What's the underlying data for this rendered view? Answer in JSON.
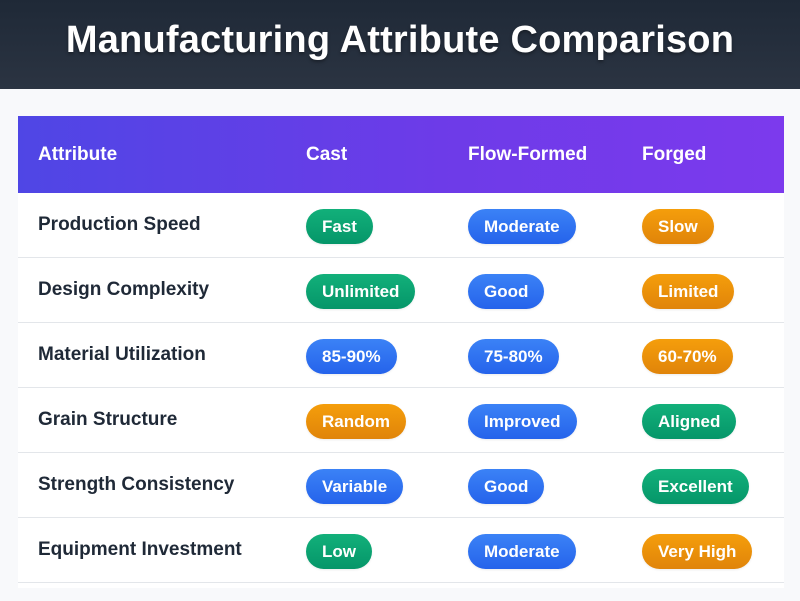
{
  "title": "Manufacturing Attribute Comparison",
  "columns": [
    "Attribute",
    "Cast",
    "Flow-Formed",
    "Forged"
  ],
  "colors": {
    "green": "#10a872",
    "blue": "#2f6fef",
    "orange": "#f08f0c",
    "header_start": "#4f46e5",
    "header_end": "#7c3aed"
  },
  "rows": [
    {
      "attribute": "Production Speed",
      "cells": [
        {
          "label": "Fast",
          "color": "green"
        },
        {
          "label": "Moderate",
          "color": "blue"
        },
        {
          "label": "Slow",
          "color": "orange"
        }
      ]
    },
    {
      "attribute": "Design Complexity",
      "cells": [
        {
          "label": "Unlimited",
          "color": "green"
        },
        {
          "label": "Good",
          "color": "blue"
        },
        {
          "label": "Limited",
          "color": "orange"
        }
      ]
    },
    {
      "attribute": "Material Utilization",
      "cells": [
        {
          "label": "85-90%",
          "color": "blue"
        },
        {
          "label": "75-80%",
          "color": "blue"
        },
        {
          "label": "60-70%",
          "color": "orange"
        }
      ]
    },
    {
      "attribute": "Grain Structure",
      "cells": [
        {
          "label": "Random",
          "color": "orange"
        },
        {
          "label": "Improved",
          "color": "blue"
        },
        {
          "label": "Aligned",
          "color": "green"
        }
      ]
    },
    {
      "attribute": "Strength Consistency",
      "cells": [
        {
          "label": "Variable",
          "color": "blue"
        },
        {
          "label": "Good",
          "color": "blue"
        },
        {
          "label": "Excellent",
          "color": "green"
        }
      ]
    },
    {
      "attribute": "Equipment Investment",
      "cells": [
        {
          "label": "Low",
          "color": "green"
        },
        {
          "label": "Moderate",
          "color": "blue"
        },
        {
          "label": "Very High",
          "color": "orange"
        }
      ]
    }
  ]
}
